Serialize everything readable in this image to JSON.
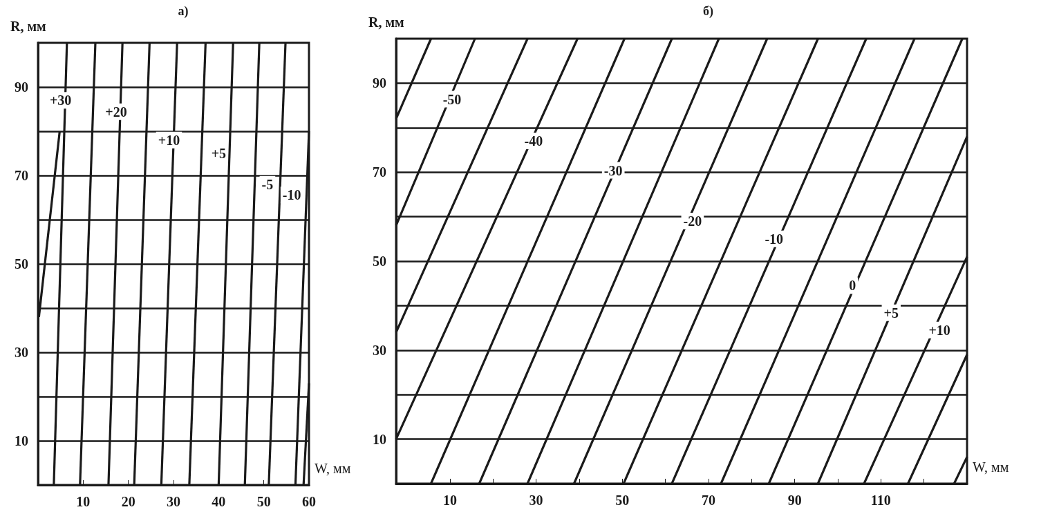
{
  "chart_data": [
    {
      "type": "line",
      "title": "а)",
      "xlabel": "W, мм",
      "ylabel": "R, мм",
      "xlim": [
        0,
        60
      ],
      "xticks": [
        10,
        20,
        30,
        40,
        50,
        60
      ],
      "ylim": [
        0,
        100
      ],
      "yticks": [
        10,
        {
          "value": 20,
          "label": null
        },
        30,
        {
          "value": 40,
          "label": null
        },
        50,
        {
          "value": 60,
          "label": null
        },
        70,
        {
          "value": 80,
          "label": null
        },
        90
      ],
      "grid": "y",
      "marker": "none",
      "line_style": "solid",
      "series": [
        {
          "color": "#1a1a1a",
          "x": [
            0.2,
            4.8
          ],
          "values": [
            38,
            80
          ]
        },
        {
          "color": "#1a1a1a",
          "x": [
            3.5,
            6.4
          ],
          "values": [
            0,
            100
          ]
        },
        {
          "color": "#1a1a1a",
          "x": [
            9.3,
            12.7
          ],
          "values": [
            0,
            100
          ]
        },
        {
          "color": "#1a1a1a",
          "x": [
            15.6,
            18.7
          ],
          "values": [
            0,
            100
          ]
        },
        {
          "color": "#1a1a1a",
          "x": [
            21.3,
            24.7
          ],
          "values": [
            0,
            100
          ]
        },
        {
          "color": "#1a1a1a",
          "x": [
            27.3,
            30.8
          ],
          "values": [
            0,
            100
          ]
        },
        {
          "color": "#1a1a1a",
          "x": [
            33.5,
            37.1
          ],
          "values": [
            0,
            100
          ]
        },
        {
          "color": "#1a1a1a",
          "x": [
            40,
            43.2
          ],
          "values": [
            0,
            100
          ]
        },
        {
          "color": "#1a1a1a",
          "x": [
            45.8,
            49
          ],
          "values": [
            0,
            100
          ]
        },
        {
          "color": "#1a1a1a",
          "x": [
            51.1,
            54.8
          ],
          "values": [
            0,
            100
          ]
        },
        {
          "color": "#1a1a1a",
          "x": [
            57,
            60
          ],
          "values": [
            0,
            80
          ]
        },
        {
          "color": "#1a1a1a",
          "x": [
            58.8,
            60
          ],
          "values": [
            0,
            23
          ]
        }
      ],
      "annotations": [
        {
          "text": "+30",
          "x": 5,
          "y": 87
        },
        {
          "text": "+20",
          "x": 17.3,
          "y": 84.4
        },
        {
          "text": "+10",
          "x": 29,
          "y": 78
        },
        {
          "text": "+5",
          "x": 40,
          "y": 75
        },
        {
          "text": "-5",
          "x": 50.8,
          "y": 68
        },
        {
          "text": "-10",
          "x": 56.2,
          "y": 65.6
        }
      ]
    },
    {
      "type": "line",
      "title": "б)",
      "xlabel": "W, мм",
      "ylabel": "R, мм",
      "xlim": [
        -2.5,
        130
      ],
      "xticks": [
        10,
        {
          "value": 20,
          "label": null
        },
        30,
        {
          "value": 40,
          "label": null
        },
        50,
        {
          "value": 60,
          "label": null
        },
        70,
        {
          "value": 80,
          "label": null
        },
        90,
        {
          "value": 100,
          "label": null
        },
        110,
        {
          "value": 120,
          "label": null
        }
      ],
      "ylim": [
        0,
        100
      ],
      "yticks": [
        10,
        {
          "value": 20,
          "label": null
        },
        30,
        {
          "value": 40,
          "label": null
        },
        50,
        {
          "value": 60,
          "label": null
        },
        70,
        {
          "value": 80,
          "label": null
        },
        90
      ],
      "grid": "y",
      "marker": "none",
      "line_style": "solid",
      "series": [
        {
          "color": "#1a1a1a",
          "x": [
            -2.5,
            5.6
          ],
          "values": [
            82,
            100
          ]
        },
        {
          "color": "#1a1a1a",
          "x": [
            -2.5,
            15.8
          ],
          "values": [
            58,
            100
          ]
        },
        {
          "color": "#1a1a1a",
          "x": [
            -2.5,
            28
          ],
          "values": [
            34,
            100
          ]
        },
        {
          "color": "#1a1a1a",
          "x": [
            -2.5,
            39.6
          ],
          "values": [
            10,
            100
          ]
        },
        {
          "color": "#1a1a1a",
          "x": [
            5.6,
            50.5
          ],
          "values": [
            0,
            100
          ]
        },
        {
          "color": "#1a1a1a",
          "x": [
            16.8,
            61.5
          ],
          "values": [
            0,
            100
          ]
        },
        {
          "color": "#1a1a1a",
          "x": [
            28,
            72.4
          ],
          "values": [
            0,
            100
          ]
        },
        {
          "color": "#1a1a1a",
          "x": [
            38.8,
            83.6
          ],
          "values": [
            0,
            100
          ]
        },
        {
          "color": "#1a1a1a",
          "x": [
            50.3,
            95.4
          ],
          "values": [
            0,
            100
          ]
        },
        {
          "color": "#1a1a1a",
          "x": [
            61.5,
            106.6
          ],
          "values": [
            0,
            100
          ]
        },
        {
          "color": "#1a1a1a",
          "x": [
            72.9,
            117.8
          ],
          "values": [
            0,
            100
          ]
        },
        {
          "color": "#1a1a1a",
          "x": [
            84,
            128.9
          ],
          "values": [
            0,
            100
          ]
        },
        {
          "color": "#1a1a1a",
          "x": [
            95.4,
            130
          ],
          "values": [
            0,
            78
          ]
        },
        {
          "color": "#1a1a1a",
          "x": [
            106.1,
            130
          ],
          "values": [
            0,
            51
          ]
        },
        {
          "color": "#1a1a1a",
          "x": [
            116.3,
            130
          ],
          "values": [
            0,
            29
          ]
        },
        {
          "color": "#1a1a1a",
          "x": [
            127,
            130
          ],
          "values": [
            0,
            6
          ]
        }
      ],
      "annotations": [
        {
          "text": "-50",
          "x": 10.5,
          "y": 86.4
        },
        {
          "text": "-40",
          "x": 29.4,
          "y": 77
        },
        {
          "text": "-30",
          "x": 47.9,
          "y": 70.4
        },
        {
          "text": "-20",
          "x": 66.3,
          "y": 59
        },
        {
          "text": "-10",
          "x": 85.2,
          "y": 55
        },
        {
          "text": "0",
          "x": 103.4,
          "y": 44.5
        },
        {
          "text": "+5",
          "x": 112.4,
          "y": 38.4
        },
        {
          "text": "+10",
          "x": 123.6,
          "y": 34.5
        }
      ]
    }
  ]
}
